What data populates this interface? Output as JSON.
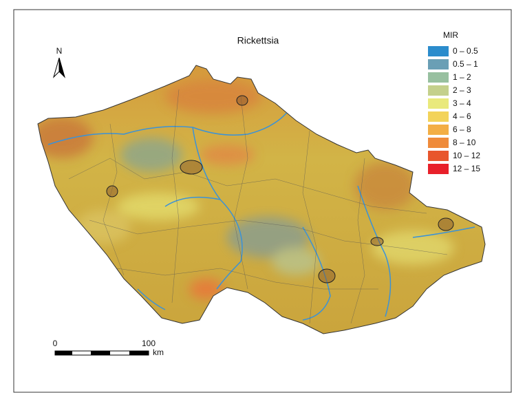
{
  "map": {
    "title": "Rickettsia",
    "north": "N",
    "legend": {
      "title": "MIR",
      "items": [
        {
          "label": "0 – 0.5",
          "color": "#2b8ccc"
        },
        {
          "label": "0.5 – 1",
          "color": "#6a9fb5"
        },
        {
          "label": "1 – 2",
          "color": "#98c0a0"
        },
        {
          "label": "2 – 3",
          "color": "#c4d08c"
        },
        {
          "label": "3 – 4",
          "color": "#e9e97c"
        },
        {
          "label": "4 – 6",
          "color": "#f3d35a"
        },
        {
          "label": "6 – 8",
          "color": "#f3ae45"
        },
        {
          "label": "8 – 10",
          "color": "#ef8b3b"
        },
        {
          "label": "10 – 12",
          "color": "#e8562c"
        },
        {
          "label": "12 – 15",
          "color": "#e8202a"
        }
      ]
    },
    "scale": {
      "start": "0",
      "end": "100",
      "unit": "km"
    }
  }
}
